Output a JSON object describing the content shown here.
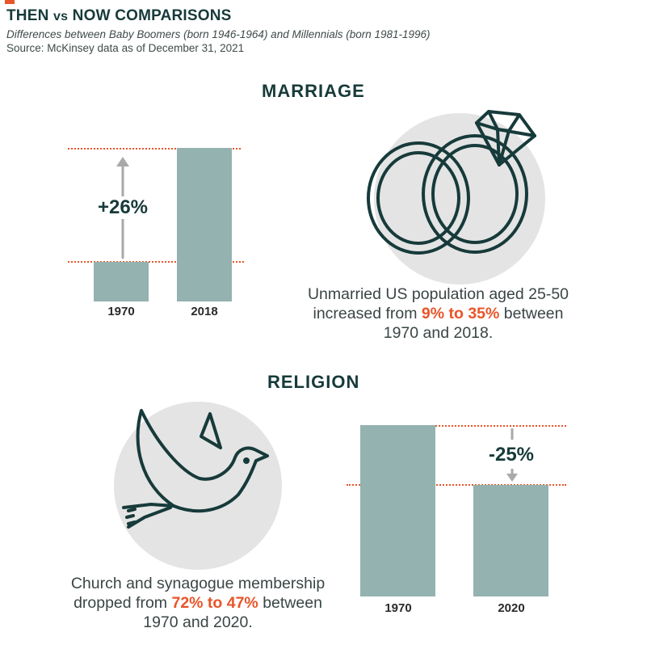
{
  "header": {
    "title_main": "THEN ",
    "title_vs": "vs",
    "title_rest": " NOW COMPARISONS",
    "subtitle": "Differences between Baby Boomers (born 1946-1964) and Millennials (born 1981-1996)",
    "source": "Source: McKinsey data as of December 31, 2021"
  },
  "colors": {
    "accent": "#e8552a",
    "bar": "#93b2b0",
    "dark": "#173a3a",
    "circle": "#e4e4e4"
  },
  "icons": {
    "marriage": "wedding-rings-icon",
    "religion": "dove-icon"
  },
  "chart_data": [
    {
      "type": "bar",
      "title": "MARRIAGE",
      "categories": [
        "1970",
        "2018"
      ],
      "values": [
        9,
        35
      ],
      "change_label": "+26%",
      "caption": {
        "pre": "Unmarried US population aged 25-50 increased from ",
        "highlight": "9% to 35%",
        "post": " between 1970 and 2018."
      }
    },
    {
      "type": "bar",
      "title": "RELIGION",
      "categories": [
        "1970",
        "2020"
      ],
      "values": [
        72,
        47
      ],
      "change_label": "-25%",
      "caption": {
        "pre": "Church and synagogue membership dropped from ",
        "highlight": "72% to 47%",
        "post": " between 1970 and 2020."
      }
    }
  ]
}
